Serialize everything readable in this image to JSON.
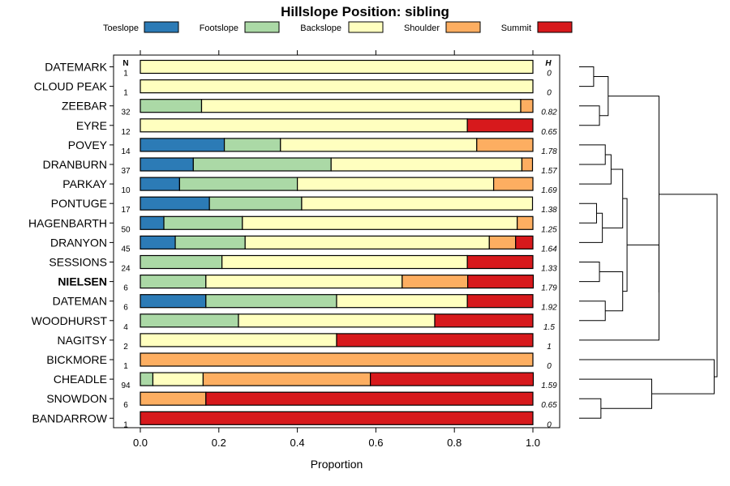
{
  "chart_data": {
    "type": "bar",
    "orientation": "horizontal",
    "stacked": true,
    "title": "Hillslope Position: sibling",
    "xlabel": "Proportion",
    "xlim": [
      0,
      1
    ],
    "xticks": [
      "0.0",
      "0.2",
      "0.4",
      "0.6",
      "0.8",
      "1.0"
    ],
    "n_header": "N",
    "h_header": "H",
    "legend": [
      {
        "name": "Toeslope",
        "color": "#2C7BB6"
      },
      {
        "name": "Footslope",
        "color": "#ABD9A6"
      },
      {
        "name": "Backslope",
        "color": "#FFFFBF"
      },
      {
        "name": "Shoulder",
        "color": "#FDAE61"
      },
      {
        "name": "Summit",
        "color": "#D7191C"
      }
    ],
    "rows": [
      {
        "name": "DATEMARK",
        "n": "1",
        "h": "0",
        "values": [
          0,
          0,
          1,
          0,
          0
        ],
        "bold": false
      },
      {
        "name": "CLOUD PEAK",
        "n": "1",
        "h": "0",
        "values": [
          0,
          0,
          1,
          0,
          0
        ],
        "bold": false
      },
      {
        "name": "ZEEBAR",
        "n": "32",
        "h": "0.82",
        "values": [
          0,
          0.156,
          0.813,
          0.031,
          0
        ],
        "bold": false
      },
      {
        "name": "EYRE",
        "n": "12",
        "h": "0.65",
        "values": [
          0,
          0,
          0.833,
          0,
          0.167
        ],
        "bold": false
      },
      {
        "name": "POVEY",
        "n": "14",
        "h": "1.78",
        "values": [
          0.214,
          0.143,
          0.5,
          0.143,
          0
        ],
        "bold": false
      },
      {
        "name": "DRANBURN",
        "n": "37",
        "h": "1.57",
        "values": [
          0.135,
          0.351,
          0.486,
          0.027,
          0
        ],
        "bold": false
      },
      {
        "name": "PARKAY",
        "n": "10",
        "h": "1.69",
        "values": [
          0.1,
          0.3,
          0.5,
          0.1,
          0
        ],
        "bold": false
      },
      {
        "name": "PONTUGE",
        "n": "17",
        "h": "1.38",
        "values": [
          0.176,
          0.235,
          0.588,
          0,
          0
        ],
        "bold": false
      },
      {
        "name": "HAGENBARTH",
        "n": "50",
        "h": "1.25",
        "values": [
          0.06,
          0.2,
          0.7,
          0.04,
          0
        ],
        "bold": false
      },
      {
        "name": "DRANYON",
        "n": "45",
        "h": "1.64",
        "values": [
          0.089,
          0.178,
          0.622,
          0.067,
          0.044
        ],
        "bold": false
      },
      {
        "name": "SESSIONS",
        "n": "24",
        "h": "1.33",
        "values": [
          0,
          0.208,
          0.625,
          0,
          0.167
        ],
        "bold": false
      },
      {
        "name": "NIELSEN",
        "n": "6",
        "h": "1.79",
        "values": [
          0,
          0.167,
          0.5,
          0.167,
          0.167
        ],
        "bold": true
      },
      {
        "name": "DATEMAN",
        "n": "6",
        "h": "1.92",
        "values": [
          0.167,
          0.333,
          0.333,
          0,
          0.167
        ],
        "bold": false
      },
      {
        "name": "WOODHURST",
        "n": "4",
        "h": "1.5",
        "values": [
          0,
          0.25,
          0.5,
          0,
          0.25
        ],
        "bold": false
      },
      {
        "name": "NAGITSY",
        "n": "2",
        "h": "1",
        "values": [
          0,
          0,
          0.5,
          0,
          0.5
        ],
        "bold": false
      },
      {
        "name": "BICKMORE",
        "n": "1",
        "h": "0",
        "values": [
          0,
          0,
          0,
          1,
          0
        ],
        "bold": false
      },
      {
        "name": "CHEADLE",
        "n": "94",
        "h": "1.59",
        "values": [
          0,
          0.032,
          0.128,
          0.426,
          0.415
        ],
        "bold": false
      },
      {
        "name": "SNOWDON",
        "n": "6",
        "h": "0.65",
        "values": [
          0,
          0,
          0,
          0.167,
          0.833
        ],
        "bold": false
      },
      {
        "name": "BANDARROW",
        "n": "1",
        "h": "0",
        "values": [
          0,
          0,
          0,
          0,
          1
        ],
        "bold": false
      }
    ],
    "dendrogram": {
      "description": "hierarchical clustering of rows (leaf indices 0-18)",
      "merges": [
        {
          "left": 0,
          "right": 1,
          "height": 0.1
        },
        {
          "left": 2,
          "right": 3,
          "height": 0.14
        },
        {
          "left": "m0",
          "right": "m1",
          "height": 0.2
        },
        {
          "left": 4,
          "right": 5,
          "height": 0.18
        },
        {
          "left": 6,
          "right": "m3",
          "height": 0.22
        },
        {
          "left": 7,
          "right": 8,
          "height": 0.12
        },
        {
          "left": "m5",
          "right": 9,
          "height": 0.16
        },
        {
          "left": "m4",
          "right": "m6",
          "height": 0.3
        },
        {
          "left": 10,
          "right": 11,
          "height": 0.14
        },
        {
          "left": 12,
          "right": 13,
          "height": 0.18
        },
        {
          "left": "m8",
          "right": "m9",
          "height": 0.3
        },
        {
          "left": "m7",
          "right": "m10",
          "height": 0.33
        },
        {
          "left": "m11",
          "right": 14,
          "height": 0.55
        },
        {
          "left": "m2",
          "right": "m12",
          "height": 0.55
        },
        {
          "left": 17,
          "right": 18,
          "height": 0.15
        },
        {
          "left": 16,
          "right": "m14",
          "height": 0.5
        },
        {
          "left": 15,
          "right": "m15",
          "height": 0.93
        },
        {
          "left": "m13",
          "right": "m16",
          "height": 0.95
        }
      ]
    }
  }
}
